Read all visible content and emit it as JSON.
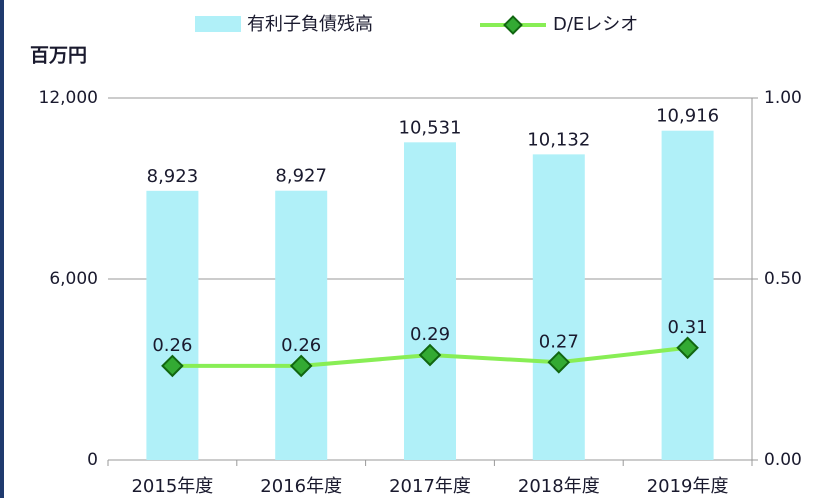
{
  "chart_data": {
    "type": "bar-line",
    "y_label": "百万円",
    "categories": [
      "2015年度",
      "2016年度",
      "2017年度",
      "2018年度",
      "2019年度"
    ],
    "series": [
      {
        "name": "有利子負債残高",
        "type": "bar",
        "color": "#b0f0f8",
        "values": [
          8923,
          8927,
          10531,
          10132,
          10916
        ],
        "value_labels": [
          "8,923",
          "8,927",
          "10,531",
          "10,132",
          "10,916"
        ]
      },
      {
        "name": "D/Eレシオ",
        "type": "line",
        "axis": "y2",
        "color": "#88ee55",
        "marker_color": "#33aa33",
        "values": [
          0.26,
          0.26,
          0.29,
          0.27,
          0.31
        ]
      }
    ],
    "ylim": [
      0,
      12000
    ],
    "yticks": [
      0,
      {
        "value": 6000,
        "label": "6,000"
      },
      {
        "value": 12000,
        "label": "12,000"
      }
    ],
    "y2lim": [
      0,
      1
    ],
    "y2ticks": [
      {
        "value": 0,
        "label": "0.00"
      },
      {
        "value": 0.5,
        "label": "0.50"
      },
      {
        "value": 1,
        "label": "1.00"
      }
    ],
    "grid": true,
    "legend": "top"
  }
}
